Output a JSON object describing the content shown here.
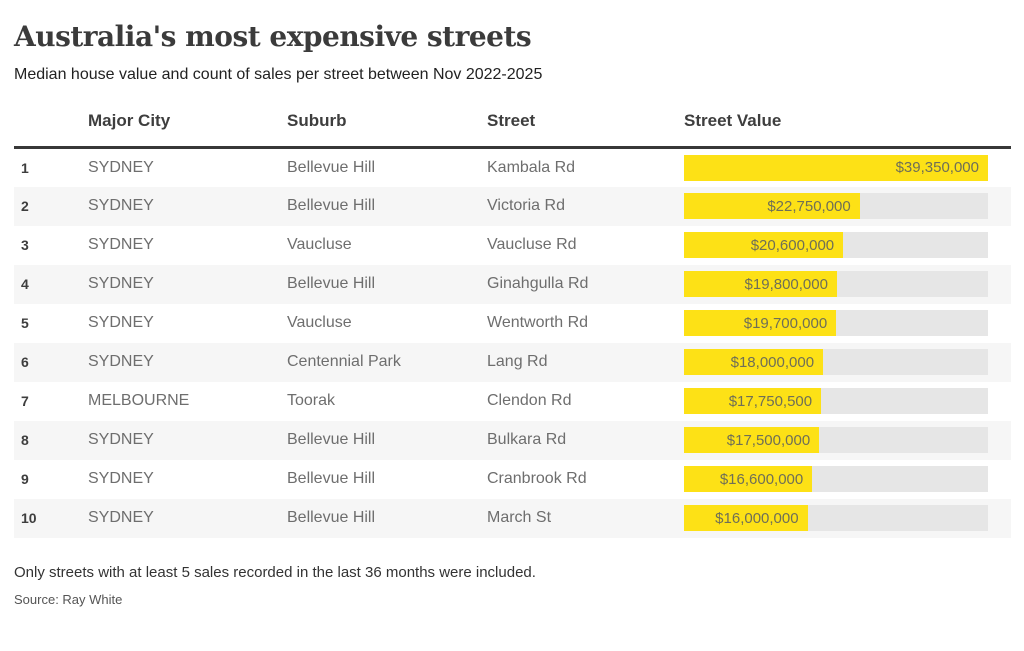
{
  "page": {
    "title": "Australia's most expensive streets",
    "subtitle": "Median house value and count of sales per street between Nov 2022-2025",
    "footnote": "Only streets with at least 5 sales recorded in the last 36 months were included.",
    "source": "Source: Ray White"
  },
  "colors": {
    "bar_fill": "#fde116",
    "bar_track": "#e6e6e6",
    "row_alt_bg": "#f6f6f6",
    "header_rule": "#383838",
    "title_text": "#3b3b3b",
    "cell_text": "#6e6e6e"
  },
  "table": {
    "columns": {
      "rank": "",
      "city": "Major City",
      "suburb": "Suburb",
      "street": "Street",
      "value": "Street Value"
    },
    "rows": [
      {
        "rank": "1",
        "city": "SYDNEY",
        "suburb": "Bellevue Hill",
        "street": "Kambala Rd",
        "value": 39350000,
        "value_label": "$39,350,000"
      },
      {
        "rank": "2",
        "city": "SYDNEY",
        "suburb": "Bellevue Hill",
        "street": "Victoria Rd",
        "value": 22750000,
        "value_label": "$22,750,000"
      },
      {
        "rank": "3",
        "city": "SYDNEY",
        "suburb": "Vaucluse",
        "street": "Vaucluse Rd",
        "value": 20600000,
        "value_label": "$20,600,000"
      },
      {
        "rank": "4",
        "city": "SYDNEY",
        "suburb": "Bellevue Hill",
        "street": "Ginahgulla Rd",
        "value": 19800000,
        "value_label": "$19,800,000"
      },
      {
        "rank": "5",
        "city": "SYDNEY",
        "suburb": "Vaucluse",
        "street": "Wentworth Rd",
        "value": 19700000,
        "value_label": "$19,700,000"
      },
      {
        "rank": "6",
        "city": "SYDNEY",
        "suburb": "Centennial Park",
        "street": "Lang Rd",
        "value": 18000000,
        "value_label": "$18,000,000"
      },
      {
        "rank": "7",
        "city": "MELBOURNE",
        "suburb": "Toorak",
        "street": "Clendon Rd",
        "value": 17750500,
        "value_label": "$17,750,500"
      },
      {
        "rank": "8",
        "city": "SYDNEY",
        "suburb": "Bellevue Hill",
        "street": "Bulkara Rd",
        "value": 17500000,
        "value_label": "$17,500,000"
      },
      {
        "rank": "9",
        "city": "SYDNEY",
        "suburb": "Bellevue Hill",
        "street": "Cranbrook Rd",
        "value": 16600000,
        "value_label": "$16,600,000"
      },
      {
        "rank": "10",
        "city": "SYDNEY",
        "suburb": "Bellevue Hill",
        "street": "March St",
        "value": 16000000,
        "value_label": "$16,000,000"
      }
    ]
  },
  "chart_data": {
    "type": "bar",
    "orientation": "horizontal",
    "title": "Australia's most expensive streets",
    "subtitle": "Median house value and count of sales per street between Nov 2022-2025",
    "categories": [
      "Kambala Rd",
      "Victoria Rd",
      "Vaucluse Rd",
      "Ginahgulla Rd",
      "Wentworth Rd",
      "Lang Rd",
      "Clendon Rd",
      "Bulkara Rd",
      "Cranbrook Rd",
      "March St"
    ],
    "values": [
      39350000,
      22750000,
      20600000,
      19800000,
      19700000,
      18000000,
      17750500,
      17500000,
      16600000,
      16000000
    ],
    "value_labels": [
      "$39,350,000",
      "$22,750,000",
      "$20,600,000",
      "$19,800,000",
      "$19,700,000",
      "$18,000,000",
      "$17,750,500",
      "$17,500,000",
      "$16,600,000",
      "$16,000,000"
    ],
    "xlabel": "Street Value",
    "ylabel": "Street",
    "xlim": [
      0,
      39350000
    ],
    "grid": false,
    "legend": false,
    "bar_color": "#fde116"
  }
}
